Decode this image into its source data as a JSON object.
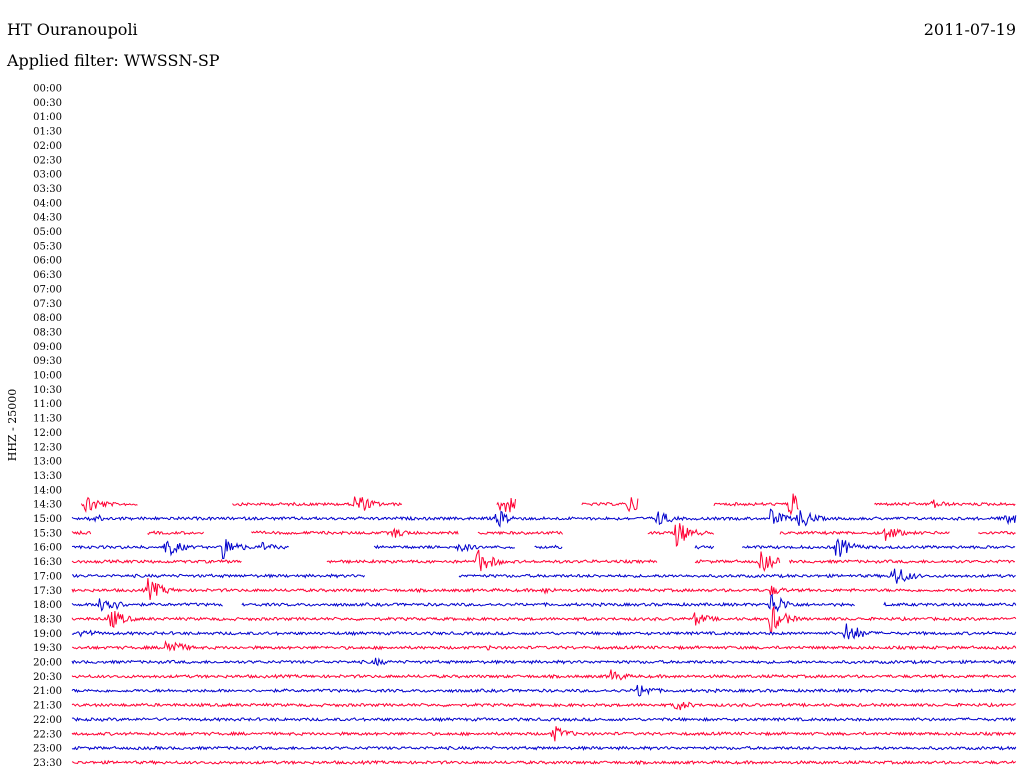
{
  "header": {
    "station": "HT Ouranoupoli",
    "date": "2011-07-19",
    "filter": "Applied filter: WWSSN-SP"
  },
  "chart_data": {
    "type": "line",
    "title": "HT Ouranoupoli",
    "ylabel": "HHZ - 25000",
    "row_labels": [
      "00:00",
      "00:30",
      "01:00",
      "01:30",
      "02:00",
      "02:30",
      "03:00",
      "03:30",
      "04:00",
      "04:30",
      "05:00",
      "05:30",
      "06:00",
      "06:30",
      "07:00",
      "07:30",
      "08:00",
      "08:30",
      "09:00",
      "09:30",
      "10:00",
      "10:30",
      "11:00",
      "11:30",
      "12:00",
      "12:30",
      "13:00",
      "13:30",
      "14:00",
      "14:30",
      "15:00",
      "15:30",
      "16:00",
      "16:30",
      "17:00",
      "17:30",
      "18:00",
      "18:30",
      "19:00",
      "19:30",
      "20:00",
      "20:30",
      "21:00",
      "21:30",
      "22:00",
      "22:30",
      "23:00",
      "23:30"
    ],
    "colors": [
      "#ff0033",
      "#0000cc"
    ],
    "traces": [
      {
        "row": "14:30",
        "color": "#ff0033",
        "segments": [
          [
            0.01,
            0.07
          ],
          [
            0.17,
            0.35
          ],
          [
            0.45,
            0.47
          ],
          [
            0.54,
            0.6
          ],
          [
            0.68,
            0.77
          ],
          [
            0.85,
            1.0
          ]
        ],
        "events": [
          [
            0.015,
            12
          ],
          [
            0.3,
            13
          ],
          [
            0.455,
            16
          ],
          [
            0.59,
            11
          ],
          [
            0.76,
            14
          ],
          [
            0.91,
            6
          ]
        ]
      },
      {
        "row": "15:00",
        "color": "#0000cc",
        "segments": [
          [
            0.0,
            1.0
          ]
        ],
        "events": [
          [
            0.02,
            6
          ],
          [
            0.45,
            10
          ],
          [
            0.62,
            9
          ],
          [
            0.74,
            10
          ],
          [
            0.77,
            12
          ],
          [
            0.99,
            10
          ]
        ]
      },
      {
        "row": "15:30",
        "color": "#ff0033",
        "segments": [
          [
            0.0,
            0.02
          ],
          [
            0.08,
            0.14
          ],
          [
            0.19,
            0.41
          ],
          [
            0.43,
            0.52
          ],
          [
            0.61,
            0.68
          ],
          [
            0.75,
            0.93
          ],
          [
            0.96,
            1.0
          ]
        ],
        "events": [
          [
            0.34,
            6
          ],
          [
            0.64,
            14
          ],
          [
            0.86,
            10
          ]
        ]
      },
      {
        "row": "16:00",
        "color": "#0000cc",
        "segments": [
          [
            0.0,
            0.23
          ],
          [
            0.32,
            0.47
          ],
          [
            0.49,
            0.52
          ],
          [
            0.66,
            0.68
          ],
          [
            0.71,
            1.0
          ]
        ],
        "events": [
          [
            0.1,
            11
          ],
          [
            0.16,
            13
          ],
          [
            0.2,
            6
          ],
          [
            0.41,
            6
          ],
          [
            0.81,
            13
          ]
        ]
      },
      {
        "row": "16:30",
        "color": "#ff0033",
        "segments": [
          [
            0.0,
            0.18
          ],
          [
            0.27,
            0.62
          ],
          [
            0.66,
            0.75
          ],
          [
            0.76,
            1.0
          ]
        ],
        "events": [
          [
            0.43,
            14
          ],
          [
            0.73,
            12
          ]
        ]
      },
      {
        "row": "17:00",
        "color": "#0000cc",
        "segments": [
          [
            0.0,
            0.31
          ],
          [
            0.41,
            1.0
          ]
        ],
        "events": [
          [
            0.87,
            13
          ]
        ]
      },
      {
        "row": "17:30",
        "color": "#ff0033",
        "segments": [
          [
            0.0,
            1.0
          ]
        ],
        "events": [
          [
            0.08,
            13
          ],
          [
            0.5,
            4
          ],
          [
            0.74,
            6
          ]
        ]
      },
      {
        "row": "18:00",
        "color": "#0000cc",
        "segments": [
          [
            0.0,
            0.16
          ],
          [
            0.18,
            0.83
          ],
          [
            0.86,
            1.0
          ]
        ],
        "events": [
          [
            0.03,
            14
          ],
          [
            0.74,
            14
          ],
          [
            0.84,
            8
          ]
        ]
      },
      {
        "row": "18:30",
        "color": "#ff0033",
        "segments": [
          [
            0.0,
            1.0
          ]
        ],
        "events": [
          [
            0.04,
            12
          ],
          [
            0.66,
            8
          ],
          [
            0.74,
            16
          ]
        ]
      },
      {
        "row": "19:00",
        "color": "#0000cc",
        "segments": [
          [
            0.0,
            1.0
          ]
        ],
        "events": [
          [
            0.01,
            6
          ],
          [
            0.82,
            13
          ]
        ]
      },
      {
        "row": "19:30",
        "color": "#ff0033",
        "segments": [
          [
            0.0,
            1.0
          ]
        ],
        "events": [
          [
            0.1,
            12
          ],
          [
            0.44,
            3
          ]
        ]
      },
      {
        "row": "20:00",
        "color": "#0000cc",
        "segments": [
          [
            0.0,
            1.0
          ]
        ],
        "events": [
          [
            0.32,
            5
          ]
        ]
      },
      {
        "row": "20:30",
        "color": "#ff0033",
        "segments": [
          [
            0.0,
            1.0
          ]
        ],
        "events": [
          [
            0.57,
            8
          ]
        ]
      },
      {
        "row": "21:00",
        "color": "#0000cc",
        "segments": [
          [
            0.0,
            1.0
          ]
        ],
        "events": [
          [
            0.6,
            9
          ]
        ]
      },
      {
        "row": "21:30",
        "color": "#ff0033",
        "segments": [
          [
            0.0,
            1.0
          ]
        ],
        "events": [
          [
            0.64,
            7
          ]
        ]
      },
      {
        "row": "22:00",
        "color": "#0000cc",
        "segments": [
          [
            0.0,
            1.0
          ]
        ],
        "events": []
      },
      {
        "row": "22:30",
        "color": "#ff0033",
        "segments": [
          [
            0.0,
            1.0
          ]
        ],
        "events": [
          [
            0.51,
            9
          ]
        ]
      },
      {
        "row": "23:00",
        "color": "#0000cc",
        "segments": [
          [
            0.0,
            1.0
          ]
        ],
        "events": []
      },
      {
        "row": "23:30",
        "color": "#ff0033",
        "segments": [
          [
            0.0,
            1.0
          ]
        ],
        "events": []
      }
    ]
  }
}
